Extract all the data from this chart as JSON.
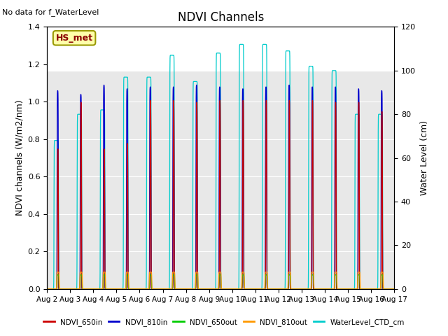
{
  "title": "NDVI Channels",
  "xlabel": "",
  "ylabel_left": "NDVI channels (W/m2/nm)",
  "ylabel_right": "Water Level (cm)",
  "no_data_text": "No data for f_WaterLevel",
  "station_label": "HS_met",
  "ylim_left": [
    0,
    1.4
  ],
  "ylim_right": [
    0,
    120
  ],
  "background_color": "#ffffff",
  "plot_bg_color": "#e8e8e8",
  "colors": {
    "NDVI_650in": "#cc0000",
    "NDVI_810in": "#0000cc",
    "NDVI_650out": "#00cc00",
    "NDVI_810out": "#ff9900",
    "WaterLevel_CTD_cm": "#00cccc"
  },
  "legend_labels": [
    "NDVI_650in",
    "NDVI_810in",
    "NDVI_650out",
    "NDVI_810out",
    "WaterLevel_CTD_cm"
  ],
  "x_start": 2,
  "x_end": 17,
  "x_ticks": [
    2,
    3,
    4,
    5,
    6,
    7,
    8,
    9,
    10,
    11,
    12,
    13,
    14,
    15,
    16,
    17
  ],
  "x_tick_labels": [
    "Aug 2",
    "Aug 3",
    "Aug 4",
    "Aug 5",
    "Aug 6",
    "Aug 7",
    "Aug 8",
    "Aug 9",
    "Aug 10",
    "Aug 11",
    "Aug 12",
    "Aug 13",
    "Aug 14",
    "Aug 15",
    "Aug 16",
    "Aug 17"
  ],
  "shade_above": 1.1667,
  "shade_color": "#d8d8d8",
  "wl_peaks": {
    "2": 68,
    "3": 80,
    "4": 82,
    "5": 97,
    "6": 97,
    "7": 107,
    "8": 95,
    "9": 108,
    "10": 112,
    "11": 112,
    "12": 109,
    "13": 102,
    "14": 100,
    "15": 80,
    "16": 80
  },
  "ndvi_810in_peaks": {
    "2": 1.06,
    "3": 1.04,
    "4": 1.09,
    "5": 1.07,
    "6": 1.08,
    "7": 1.08,
    "8": 1.09,
    "9": 1.08,
    "10": 1.07,
    "11": 1.08,
    "12": 1.09,
    "13": 1.08,
    "14": 1.08,
    "15": 1.07,
    "16": 1.06
  },
  "ndvi_650in_peaks": {
    "2": 0.75,
    "3": 1.0,
    "4": 0.75,
    "5": 0.78,
    "6": 1.01,
    "7": 1.01,
    "8": 1.0,
    "9": 1.01,
    "10": 1.01,
    "11": 1.01,
    "12": 1.01,
    "13": 1.01,
    "14": 1.0,
    "15": 1.0,
    "16": 0.95
  }
}
